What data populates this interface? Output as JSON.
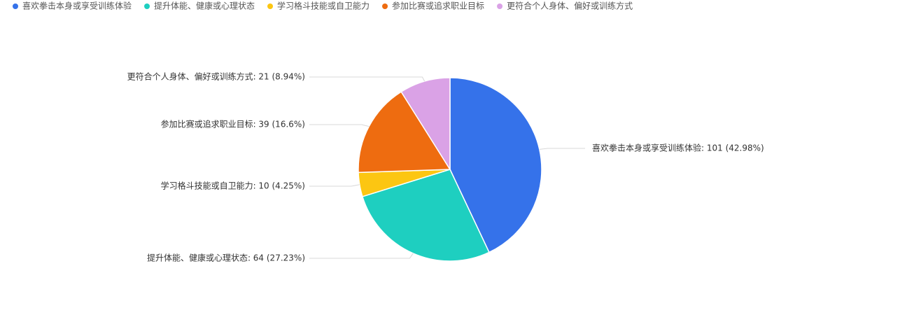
{
  "chart_data": {
    "type": "pie",
    "categories": [
      "喜欢拳击本身或享受训练体验",
      "提升体能、健康或心理状态",
      "学习格斗技能或自卫能力",
      "参加比赛或追求职业目标",
      "更符合个人身体、偏好或训练方式"
    ],
    "values": [
      101,
      64,
      10,
      39,
      21
    ],
    "value_labels": [
      "喜欢拳击本身或享受训练体验: 101 (42.98%)",
      "提升体能、健康或心理状态: 64 (27.23%)",
      "学习格斗技能或自卫能力: 10 (4.25%)",
      "参加比赛或追求职业目标: 39 (16.6%)",
      "更符合个人身体、偏好或训练方式: 21 (8.94%)"
    ],
    "colors": [
      "#3572ea",
      "#1ecfc0",
      "#fcc612",
      "#ee6c10",
      "#daa2e6"
    ],
    "legend": "top-left"
  }
}
